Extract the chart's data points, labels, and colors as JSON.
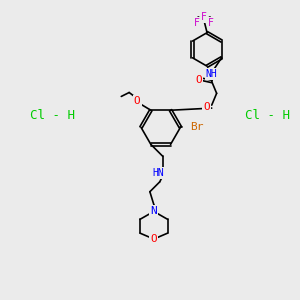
{
  "bg_color": "#ebebeb",
  "bond_color": "#000000",
  "atom_colors": {
    "O": "#ff0000",
    "N": "#0000ff",
    "Br": "#cc6600",
    "F": "#cc00cc",
    "Cl": "#00cc00",
    "H": "#666666",
    "C": "#000000"
  },
  "font_size": 7,
  "line_width": 1.2
}
